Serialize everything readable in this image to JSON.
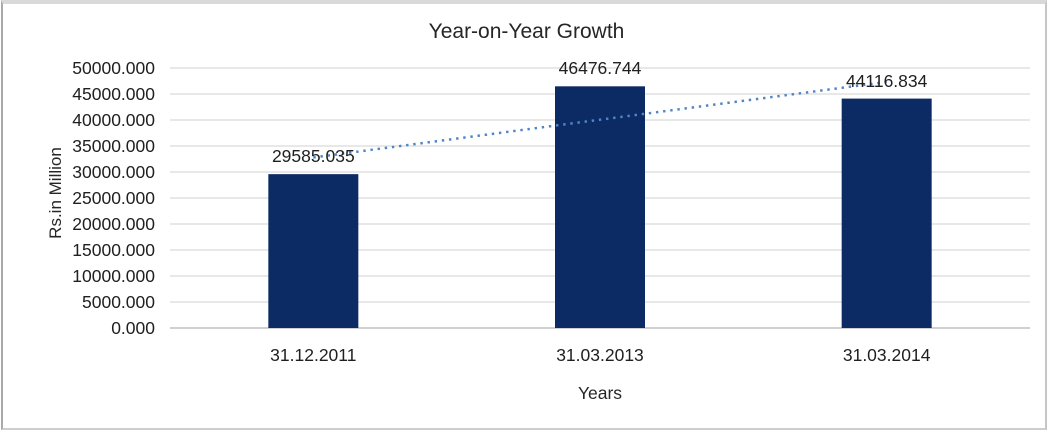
{
  "chart_data": {
    "type": "bar",
    "title": "Year-on-Year Growth",
    "xlabel": "Years",
    "ylabel": "Rs.in Million",
    "categories": [
      "31.12.2011",
      "31.03.2013",
      "31.03.2014"
    ],
    "series": [
      {
        "name": "Rs.in Million",
        "values": [
          29585.035,
          46476.744,
          44116.834
        ]
      }
    ],
    "data_labels": [
      "29585.035",
      "46476.744",
      "44116.834"
    ],
    "ylim": [
      0,
      50000
    ],
    "ytick_step": 5000,
    "ytick_labels": [
      "50000.000",
      "45000.000",
      "40000.000",
      "35000.000",
      "30000.000",
      "25000.000",
      "20000.000",
      "15000.000",
      "10000.000",
      "5000.000",
      "0.000"
    ],
    "grid": "horizontal",
    "legend": "none",
    "trendline": {
      "type": "linear",
      "style": "dotted"
    },
    "colors": {
      "bar": "#0c2a63",
      "trend": "#4f86c6",
      "gridline": "#d9d9d9",
      "axis_line": "#c0c0c0",
      "text": "#202020"
    }
  }
}
